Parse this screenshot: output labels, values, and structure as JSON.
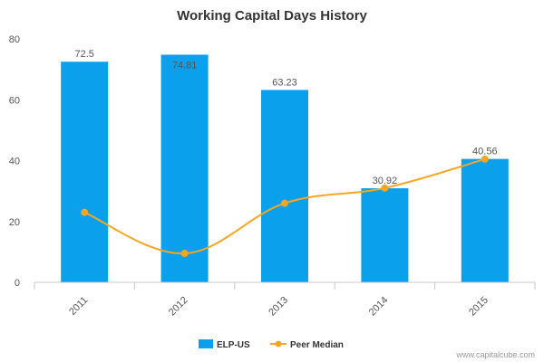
{
  "chart_data": {
    "type": "bar",
    "title": "Working Capital Days History",
    "categories": [
      "2011",
      "2012",
      "2013",
      "2014",
      "2015"
    ],
    "series": [
      {
        "name": "ELP-US",
        "type": "bar",
        "values": [
          72.5,
          74.81,
          63.23,
          30.92,
          40.56
        ],
        "labels": [
          "72.5",
          "74.81",
          "63.23",
          "30.92",
          "40.56"
        ]
      },
      {
        "name": "Peer Median",
        "type": "line",
        "values": [
          23,
          9.5,
          26,
          31,
          40.5
        ]
      }
    ],
    "ylim": [
      0,
      80
    ],
    "yticks": [
      0,
      20,
      40,
      60,
      80
    ],
    "grid": false,
    "legend": "bottom-center"
  },
  "colors": {
    "bar": "#0aa0ec",
    "line": "#f5a623"
  },
  "credit": "www.capitalcube.com"
}
